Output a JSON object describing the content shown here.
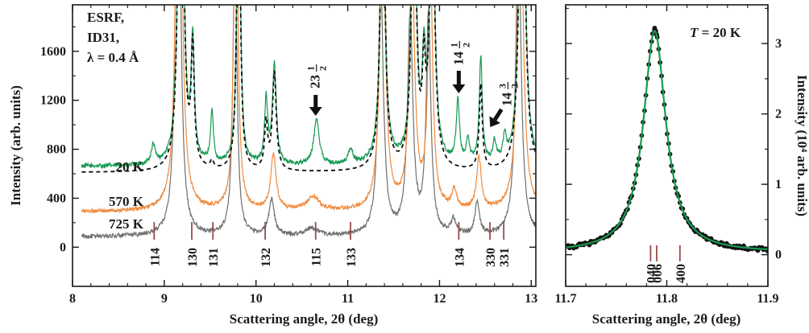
{
  "chart_data": [
    {
      "type": "line",
      "xlabel": "Scattering angle, 2θ (deg)",
      "ylabel": "Intensity (arb. units)",
      "xlim": [
        8,
        13.05
      ],
      "ylim": [
        -320,
        1980
      ],
      "x_ticks": [
        "8",
        "9",
        "10",
        "11",
        "12",
        "13"
      ],
      "y_ticks": [
        "0",
        "400",
        "800",
        "1200",
        "1600"
      ],
      "annotation": {
        "line1": "ESRF,",
        "line2": "ID31,",
        "line3": "λ = 0.4 Å"
      },
      "series": [
        {
          "name": "20 K",
          "color": "#169a52",
          "offset": 660,
          "noise": 18,
          "peaks": [
            [
              8.88,
              150,
              0.025
            ],
            [
              9.18,
              5000,
              0.025
            ],
            [
              9.31,
              950,
              0.02
            ],
            [
              9.52,
              420,
              0.018
            ],
            [
              9.81,
              3000,
              0.02
            ],
            [
              10.11,
              520,
              0.02
            ],
            [
              10.2,
              820,
              0.025
            ],
            [
              10.66,
              380,
              0.035
            ],
            [
              11.03,
              120,
              0.03
            ],
            [
              11.38,
              2500,
              0.03
            ],
            [
              11.72,
              2500,
              0.03
            ],
            [
              11.83,
              700,
              0.02
            ],
            [
              11.92,
              2500,
              0.03
            ],
            [
              12.2,
              520,
              0.02
            ],
            [
              12.31,
              180,
              0.02
            ],
            [
              12.45,
              860,
              0.02
            ],
            [
              12.6,
              170,
              0.02
            ],
            [
              12.71,
              190,
              0.02
            ],
            [
              12.9,
              4000,
              0.03
            ]
          ]
        },
        {
          "name": "570 K",
          "color": "#f08a3c",
          "offset": 290,
          "noise": 16,
          "peaks": [
            [
              9.16,
              5000,
              0.03
            ],
            [
              9.78,
              3000,
              0.025
            ],
            [
              10.19,
              450,
              0.035
            ],
            [
              10.62,
              110,
              0.08
            ],
            [
              11.38,
              2500,
              0.035
            ],
            [
              11.7,
              2000,
              0.035
            ],
            [
              11.9,
              2000,
              0.03
            ],
            [
              12.16,
              150,
              0.03
            ],
            [
              12.43,
              420,
              0.03
            ],
            [
              12.88,
              3000,
              0.035
            ]
          ]
        },
        {
          "name": "725 K",
          "color": "#707070",
          "offset": 85,
          "noise": 18,
          "peaks": [
            [
              9.15,
              4000,
              0.03
            ],
            [
              9.77,
              2500,
              0.025
            ],
            [
              10.17,
              300,
              0.035
            ],
            [
              10.6,
              60,
              0.08
            ],
            [
              11.36,
              2000,
              0.035
            ],
            [
              11.68,
              1800,
              0.035
            ],
            [
              11.88,
              1800,
              0.03
            ],
            [
              12.15,
              120,
              0.03
            ],
            [
              12.41,
              260,
              0.03
            ],
            [
              12.86,
              2500,
              0.035
            ]
          ]
        },
        {
          "name": "",
          "color": "#111111",
          "dashed": true,
          "offset": 610,
          "noise": 0,
          "peaks": [
            [
              9.18,
              5000,
              0.025
            ],
            [
              9.31,
              950,
              0.02
            ],
            [
              9.52,
              60,
              0.02
            ],
            [
              9.81,
              3000,
              0.02
            ],
            [
              10.11,
              380,
              0.02
            ],
            [
              10.2,
              800,
              0.025
            ],
            [
              11.38,
              2500,
              0.03
            ],
            [
              11.72,
              2500,
              0.03
            ],
            [
              11.83,
              700,
              0.02
            ],
            [
              11.92,
              2500,
              0.03
            ],
            [
              12.45,
              700,
              0.02
            ],
            [
              12.9,
              4000,
              0.03
            ]
          ]
        }
      ],
      "reflections": [
        {
          "label": "114",
          "x": 8.89
        },
        {
          "label": "130",
          "x": 9.3
        },
        {
          "label": "131",
          "x": 9.53
        },
        {
          "label": "132",
          "x": 10.1
        },
        {
          "label": "115",
          "x": 10.65
        },
        {
          "label": "133",
          "x": 11.03
        },
        {
          "label": "134",
          "x": 12.21
        },
        {
          "label": "330",
          "x": 12.55
        },
        {
          "label": "331",
          "x": 12.7
        }
      ],
      "arrows": [
        {
          "label_main": "23",
          "label_num": "1",
          "label_den": "2",
          "x": 10.65
        },
        {
          "label_main": "14",
          "label_num": "1",
          "label_den": "2",
          "x": 12.21
        },
        {
          "label_main": "14",
          "label_num": "3",
          "label_den": "2",
          "x": 12.57
        }
      ]
    },
    {
      "type": "scatter",
      "xlabel": "Scattering angle, 2θ (deg)",
      "ylabel": "Intensity (10⁴ arb. units)",
      "xlim": [
        11.7,
        11.9
      ],
      "ylim": [
        -0.45,
        3.55
      ],
      "x_ticks": [
        "11.7",
        "11.8",
        "11.9"
      ],
      "y_ticks": [
        "0",
        "1",
        "2",
        "3"
      ],
      "annotation": "T = 20 K",
      "fit_color": "#169a52",
      "point_color": "#111111",
      "peak": {
        "center": 11.788,
        "amplitude": 3.15,
        "hwhm": 0.0135,
        "baseline": 0.03
      },
      "reflections": [
        {
          "label": "040",
          "x": 11.784
        },
        {
          "label": "006",
          "x": 11.79
        },
        {
          "label": "400",
          "x": 11.813
        }
      ]
    }
  ]
}
